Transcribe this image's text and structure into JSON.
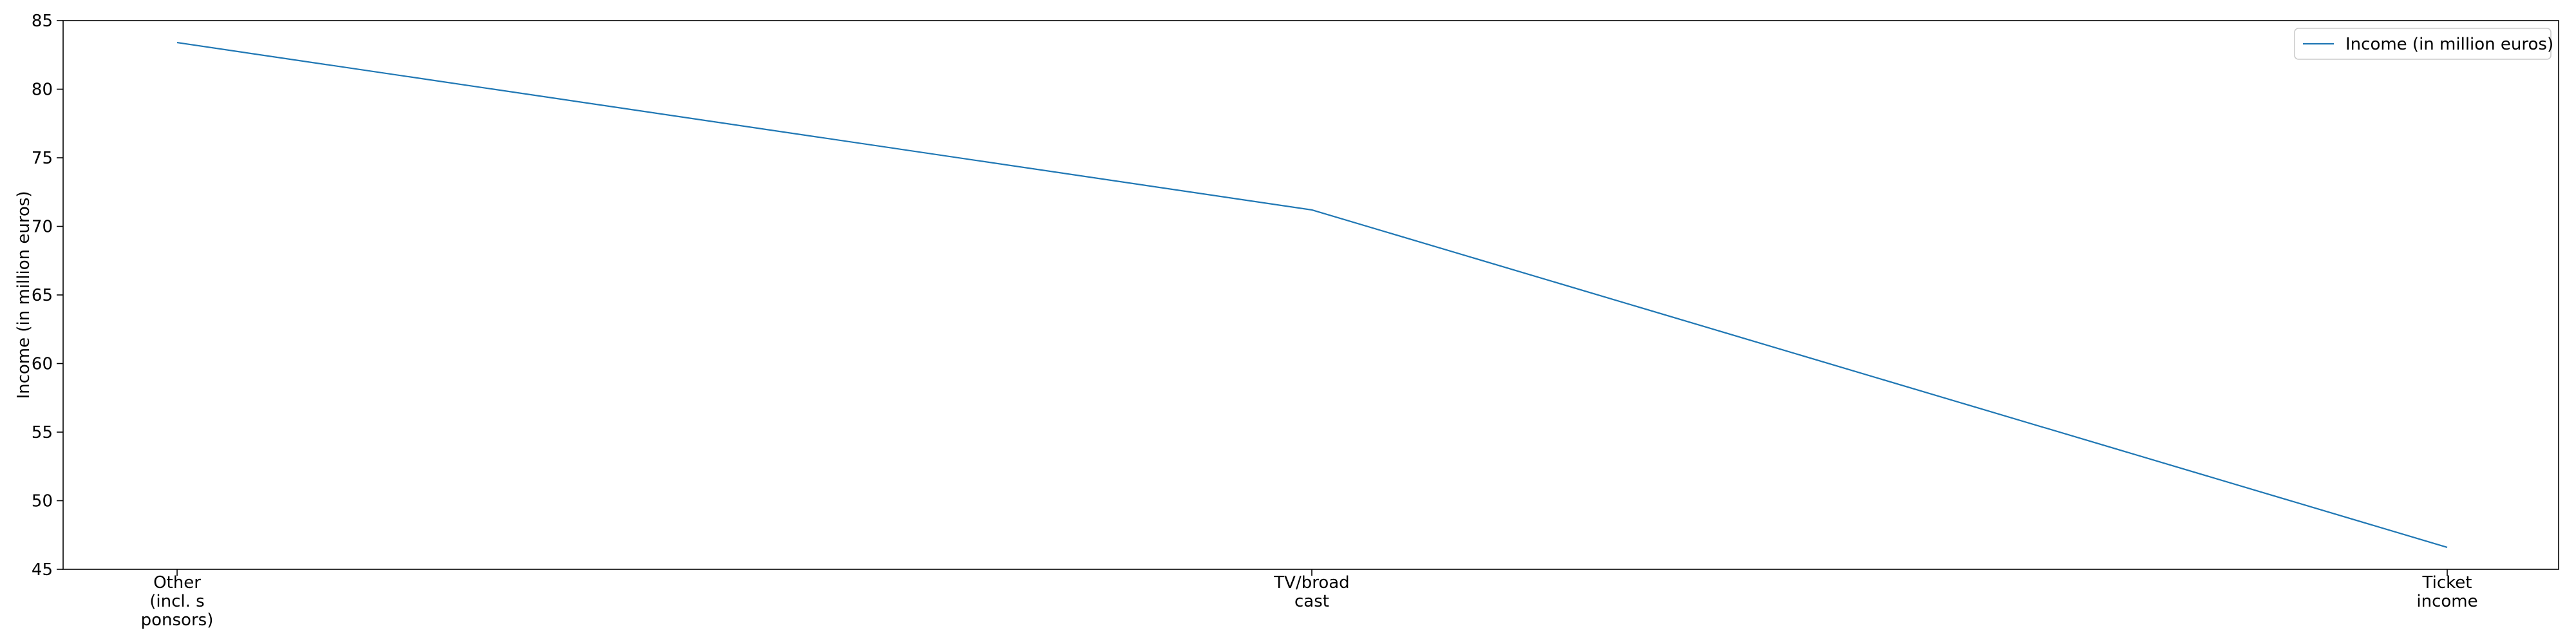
{
  "chart_data": {
    "type": "line",
    "categories": [
      [
        "Other",
        "(incl. s",
        "ponsors)"
      ],
      [
        "TV/broad",
        "cast"
      ],
      [
        "Ticket",
        "income"
      ]
    ],
    "series": [
      {
        "name": "Income (in million euros)",
        "values": [
          83.4,
          71.2,
          46.6
        ],
        "color": "#1f77b4"
      }
    ],
    "ylabel": "Income (in million euros)",
    "xlabel": "",
    "ylim": [
      45,
      85
    ],
    "yticks": [
      45,
      50,
      55,
      60,
      65,
      70,
      75,
      80,
      85
    ],
    "legend_position": "top-right",
    "grid": false
  }
}
